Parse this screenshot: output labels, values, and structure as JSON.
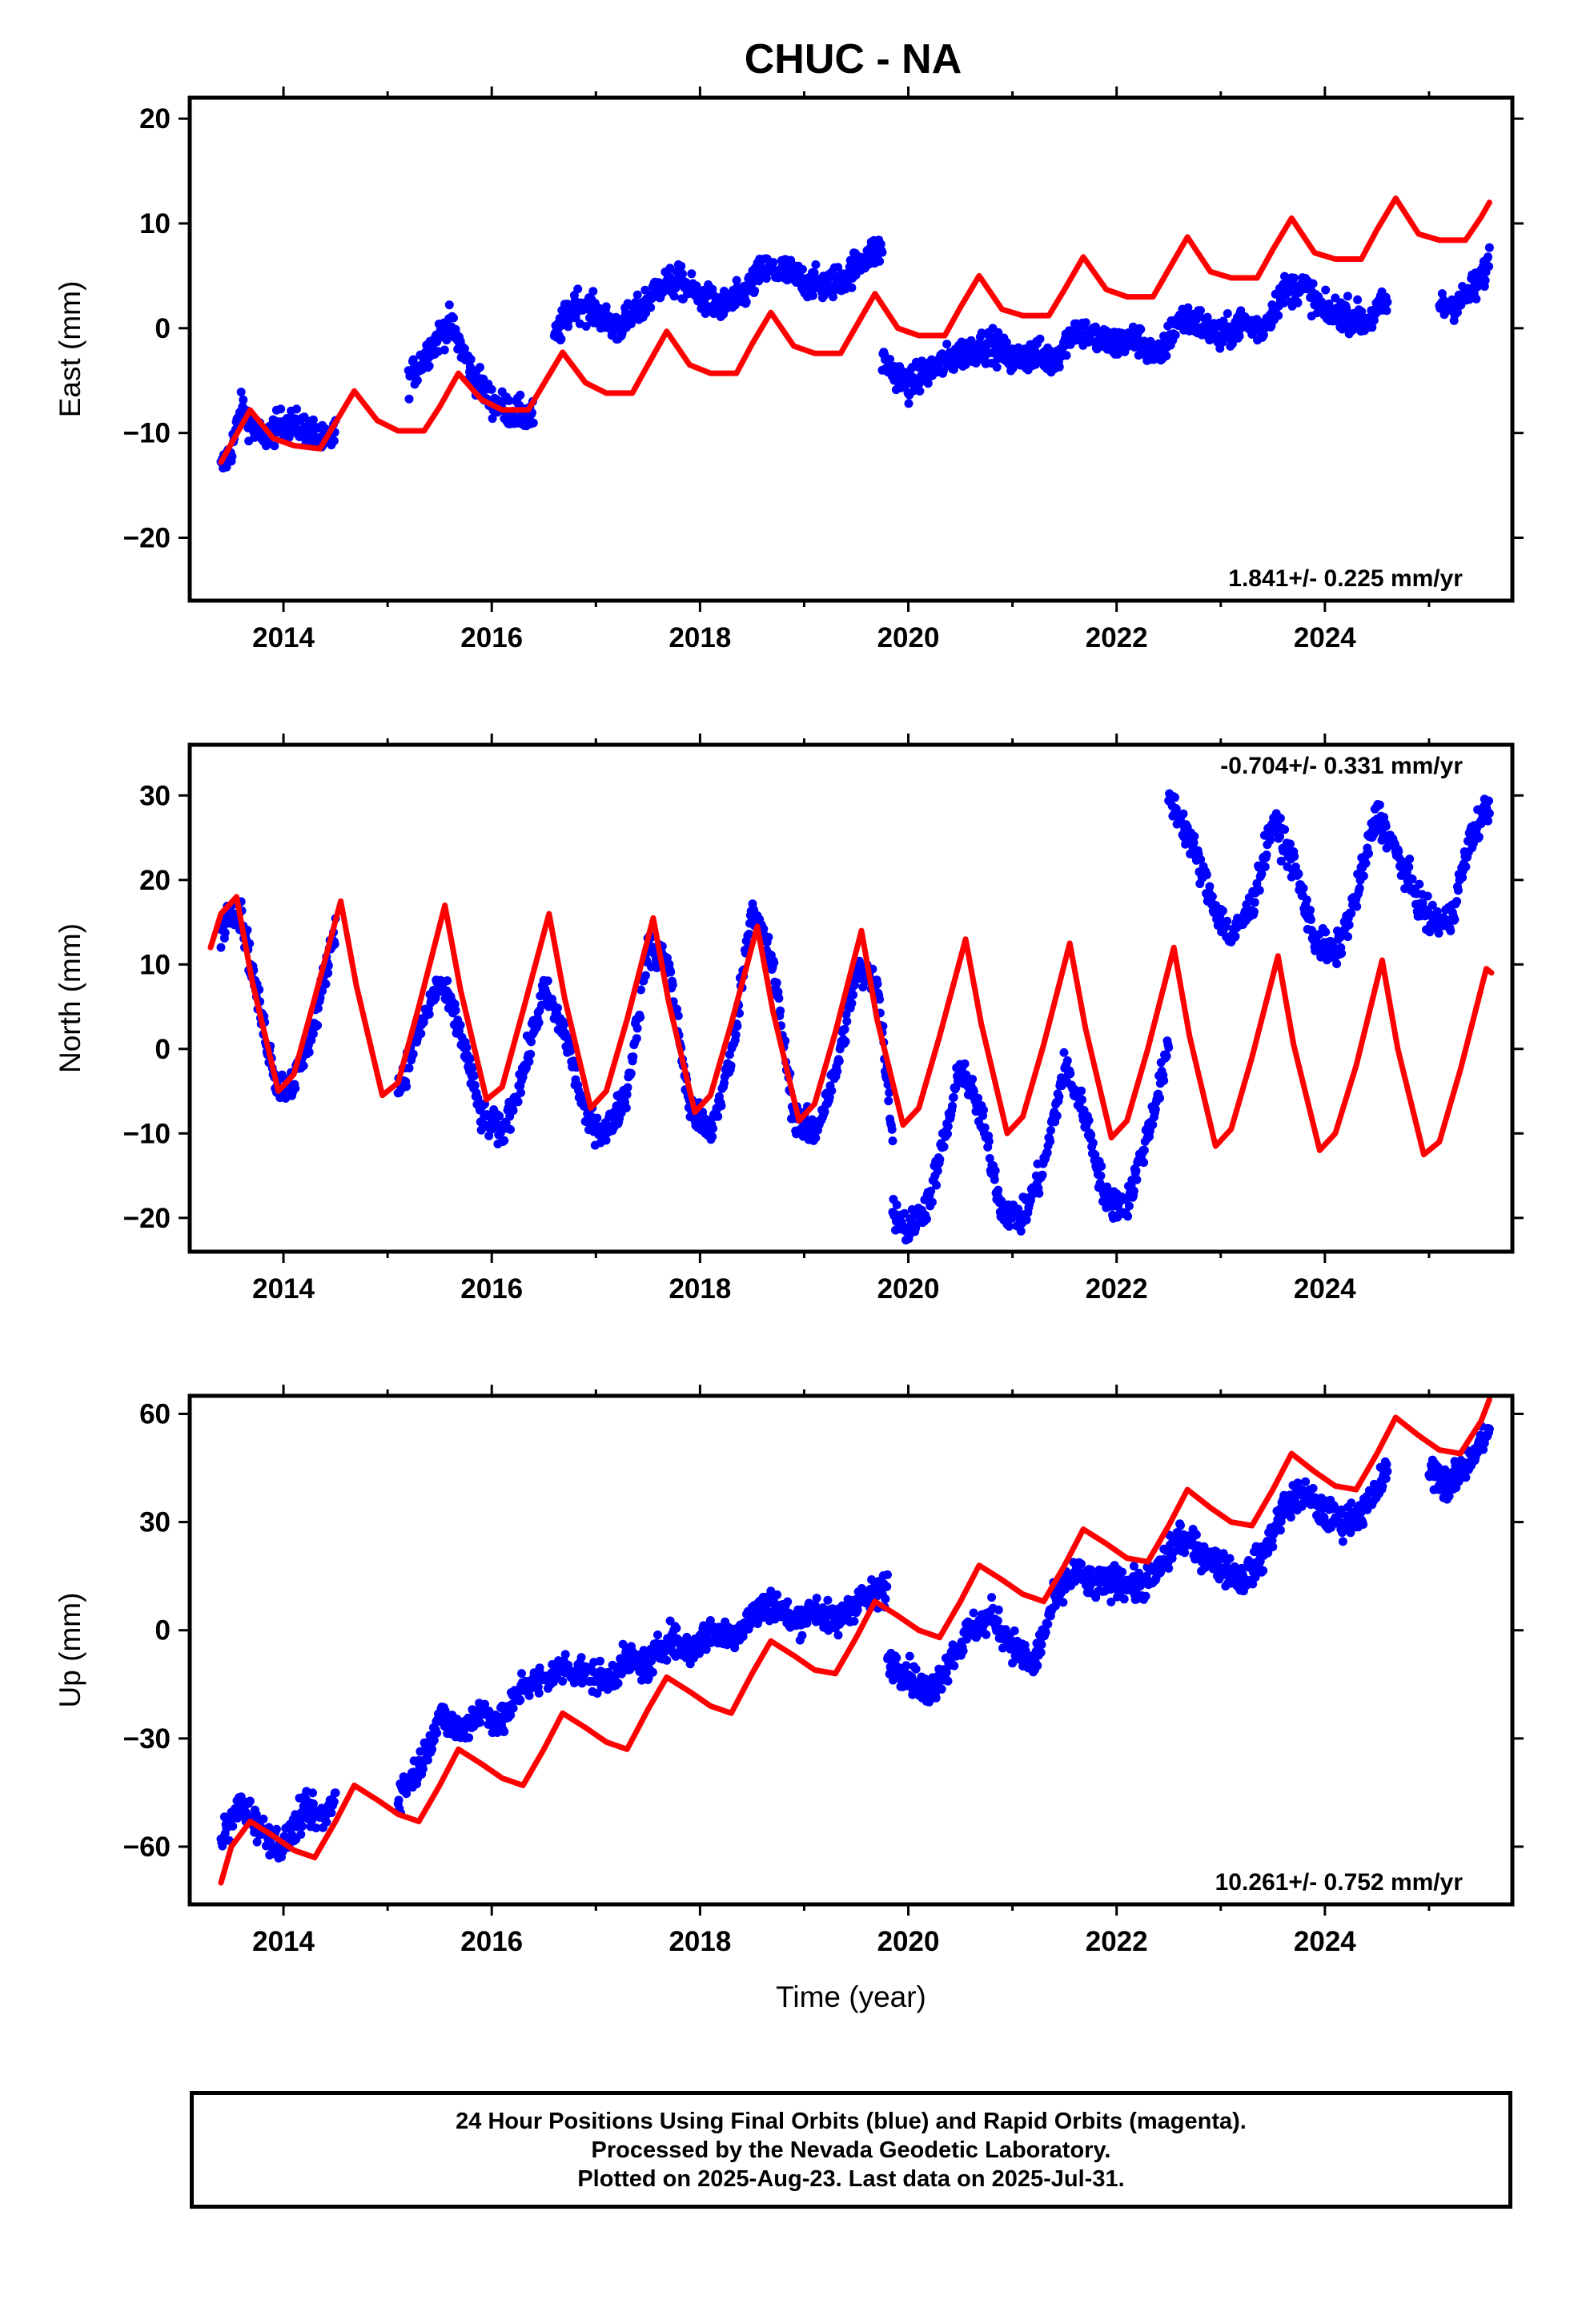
{
  "title": "CHUC - NA",
  "colors": {
    "final_orbits": "#0000ff",
    "model": "#ff0000",
    "frame": "#000000"
  },
  "chart_data": [
    {
      "type": "scatter",
      "ylabel": "East (mm)",
      "xlabel": "",
      "xlim": [
        2013.1,
        2025.8
      ],
      "ylim": [
        -26,
        22
      ],
      "yticks": [
        20,
        10,
        0,
        -10,
        -20
      ],
      "xticks": [
        2014,
        2016,
        2018,
        2020,
        2022,
        2024
      ],
      "rate_text": "1.841+/- 0.225 mm/yr",
      "rate_position": "bottom-right",
      "series": [
        {
          "role": "observations",
          "segments": [
            {
              "x": [
                2013.4,
                2013.5,
                2013.6,
                2013.7,
                2013.8,
                2014.0,
                2014.2,
                2014.4,
                2014.5
              ],
              "y": [
                -13.5,
                -11.5,
                -7.5,
                -9.5,
                -10.5,
                -9.0,
                -9.5,
                -11.0,
                -10.0
              ]
            },
            {
              "x": [
                2015.2,
                2015.4,
                2015.6,
                2015.8,
                2016.0,
                2016.2,
                2016.4
              ],
              "y": [
                -5.0,
                -2.0,
                0.5,
                -4.0,
                -7.0,
                -8.0,
                -8.5
              ]
            },
            {
              "x": [
                2016.6,
                2016.8,
                2017.0,
                2017.2,
                2017.4,
                2017.6,
                2017.8,
                2018.0,
                2018.2,
                2018.4,
                2018.6,
                2018.8,
                2019.0,
                2019.2,
                2019.4,
                2019.6,
                2019.75
              ],
              "y": [
                -1.0,
                2.5,
                1.5,
                0.0,
                1.5,
                4.0,
                4.5,
                3.0,
                2.0,
                3.0,
                5.5,
                5.5,
                4.5,
                4.0,
                5.0,
                7.0,
                7.5
              ]
            },
            {
              "x": [
                2019.75,
                2020.0,
                2020.2,
                2020.4,
                2020.6,
                2020.8,
                2021.0,
                2021.2,
                2021.4,
                2021.6,
                2021.8,
                2022.0,
                2022.2,
                2022.4,
                2022.6,
                2022.8,
                2023.0,
                2023.2,
                2023.4,
                2023.6,
                2023.8,
                2024.0,
                2024.2,
                2024.4,
                2024.6
              ],
              "y": [
                -3.0,
                -5.5,
                -4.0,
                -3.0,
                -2.0,
                -1.5,
                -3.0,
                -2.5,
                -3.0,
                0.0,
                -1.0,
                -1.5,
                -1.0,
                -3.0,
                1.0,
                0.5,
                -1.0,
                0.5,
                0.0,
                3.5,
                4.0,
                1.5,
                1.5,
                0.5,
                2.5
              ]
            },
            {
              "x": [
                2025.1,
                2025.3,
                2025.5,
                2025.58
              ],
              "y": [
                2.0,
                2.5,
                4.5,
                6.5
              ]
            }
          ]
        },
        {
          "role": "model",
          "x": [
            2013.4,
            2013.5,
            2013.68,
            2013.9,
            2014.1,
            2014.35,
            2014.5,
            2014.68,
            2014.9,
            2015.1,
            2015.35,
            2015.5,
            2015.68,
            2015.9,
            2016.1,
            2016.35,
            2016.5,
            2016.68,
            2016.9,
            2017.1,
            2017.35,
            2017.5,
            2017.68,
            2017.9,
            2018.1,
            2018.35,
            2018.5,
            2018.68,
            2018.9,
            2019.1,
            2019.35,
            2019.5,
            2019.68,
            2019.9,
            2020.1,
            2020.35,
            2020.5,
            2020.68,
            2020.9,
            2021.1,
            2021.35,
            2021.5,
            2021.68,
            2021.9,
            2022.1,
            2022.35,
            2022.5,
            2022.68,
            2022.9,
            2023.1,
            2023.35,
            2023.5,
            2023.68,
            2023.9,
            2024.1,
            2024.35,
            2024.5,
            2024.68,
            2024.9,
            2025.1,
            2025.35,
            2025.5,
            2025.58
          ],
          "y": [
            -12.8,
            -11.0,
            -7.8,
            -10.5,
            -11.2,
            -11.5,
            -9.0,
            -6.0,
            -8.8,
            -9.8,
            -9.8,
            -7.5,
            -4.3,
            -6.8,
            -7.8,
            -7.8,
            -5.3,
            -2.3,
            -5.2,
            -6.2,
            -6.2,
            -3.5,
            -0.3,
            -3.5,
            -4.3,
            -4.3,
            -1.5,
            1.5,
            -1.7,
            -2.4,
            -2.4,
            0.2,
            3.3,
            0.0,
            -0.7,
            -0.7,
            2.0,
            5.0,
            1.8,
            1.2,
            1.2,
            3.7,
            6.8,
            3.7,
            3.0,
            3.0,
            5.6,
            8.7,
            5.4,
            4.8,
            4.8,
            7.5,
            10.5,
            7.2,
            6.6,
            6.6,
            9.4,
            12.4,
            9.0,
            8.4,
            8.4,
            10.6,
            12.0
          ]
        }
      ]
    },
    {
      "type": "scatter",
      "ylabel": "North (mm)",
      "xlabel": "",
      "xlim": [
        2013.1,
        2025.8
      ],
      "ylim": [
        -24,
        36
      ],
      "yticks": [
        30,
        20,
        10,
        0,
        -10,
        -20
      ],
      "xticks": [
        2014,
        2016,
        2018,
        2020,
        2022,
        2024
      ],
      "rate_text": "-0.704+/- 0.331 mm/yr",
      "rate_position": "top-right",
      "series": [
        {
          "role": "observations",
          "segments": [
            {
              "x": [
                2013.4,
                2013.5,
                2013.6,
                2013.8,
                2013.95,
                2014.1,
                2014.3,
                2014.5
              ],
              "y": [
                14.0,
                17.0,
                15.5,
                3.0,
                -4.5,
                -4.0,
                3.0,
                15.0
              ]
            },
            {
              "x": [
                2015.1,
                2015.3,
                2015.5,
                2015.7,
                2015.9,
                2016.1,
                2016.3,
                2016.5,
                2016.7,
                2016.9,
                2017.1,
                2017.3,
                2017.5,
                2017.7,
                2017.9,
                2018.1,
                2018.3,
                2018.5,
                2018.7,
                2018.9,
                2019.1,
                2019.3,
                2019.5,
                2019.7,
                2019.85
              ],
              "y": [
                -5.0,
                2.0,
                8.0,
                2.0,
                -8.0,
                -10.0,
                -3.0,
                7.0,
                2.0,
                -8.0,
                -10.0,
                -5.0,
                12.0,
                10.0,
                -7.0,
                -10.0,
                -1.0,
                17.0,
                10.0,
                -8.0,
                -10.0,
                -3.0,
                9.0,
                8.0,
                -10.0
              ]
            },
            {
              "x": [
                2019.85,
                2020.0,
                2020.2,
                2020.4,
                2020.5,
                2020.7,
                2020.9,
                2021.1,
                2021.3,
                2021.5,
                2021.7,
                2021.9,
                2022.1,
                2022.3,
                2022.5
              ],
              "y": [
                -19.0,
                -21.5,
                -18.0,
                -8.0,
                -2.0,
                -8.0,
                -19.0,
                -20.0,
                -14.0,
                -2.0,
                -8.0,
                -18.0,
                -18.5,
                -10.0,
                0.0
              ]
            },
            {
              "x": [
                2022.5,
                2022.7,
                2022.9,
                2023.1,
                2023.3,
                2023.5,
                2023.7,
                2023.9,
                2024.1,
                2024.3,
                2024.5,
                2025.0,
                2025.2,
                2025.4,
                2025.58
              ],
              "y": [
                30.0,
                25.0,
                18.0,
                13.0,
                17.0,
                27.0,
                22.0,
                13.0,
                11.0,
                18.0,
                28.0,
                15.0,
                15.0,
                25.0,
                29.0
              ]
            }
          ]
        },
        {
          "role": "model",
          "x": [
            2013.3,
            2013.4,
            2013.55,
            2013.7,
            2013.95,
            2014.1,
            2014.3,
            2014.55,
            2014.7,
            2014.95,
            2015.1,
            2015.3,
            2015.55,
            2015.7,
            2015.95,
            2016.1,
            2016.3,
            2016.55,
            2016.7,
            2016.95,
            2017.1,
            2017.3,
            2017.55,
            2017.7,
            2017.95,
            2018.1,
            2018.3,
            2018.55,
            2018.7,
            2018.95,
            2019.1,
            2019.3,
            2019.55,
            2019.7,
            2019.95,
            2020.1,
            2020.3,
            2020.55,
            2020.7,
            2020.95,
            2021.1,
            2021.3,
            2021.55,
            2021.7,
            2021.95,
            2022.1,
            2022.3,
            2022.55,
            2022.7,
            2022.95,
            2023.1,
            2023.3,
            2023.55,
            2023.7,
            2023.95,
            2024.1,
            2024.3,
            2024.55,
            2024.7,
            2024.95,
            2025.1,
            2025.3,
            2025.55,
            2025.6
          ],
          "y": [
            12.0,
            16.0,
            18.0,
            8.0,
            -5.0,
            -3.0,
            6.0,
            17.5,
            7.5,
            -5.5,
            -4.0,
            5.0,
            17.0,
            7.0,
            -6.0,
            -4.5,
            4.5,
            16.0,
            6.0,
            -7.0,
            -5.0,
            3.5,
            15.5,
            5.5,
            -7.5,
            -5.5,
            3.0,
            14.5,
            4.5,
            -8.5,
            -6.5,
            2.0,
            14.0,
            3.5,
            -9.0,
            -7.0,
            1.5,
            13.0,
            3.0,
            -10.0,
            -8.0,
            0.5,
            12.5,
            2.5,
            -10.5,
            -8.5,
            0.0,
            12.0,
            1.5,
            -11.5,
            -9.5,
            -1.0,
            11.0,
            0.5,
            -12.0,
            -10.0,
            -2.0,
            10.5,
            0.0,
            -12.5,
            -11.0,
            -2.5,
            9.5,
            9.0
          ]
        }
      ]
    },
    {
      "type": "scatter",
      "ylabel": "Up (mm)",
      "xlabel": "Time (year)",
      "xlim": [
        2013.1,
        2025.8
      ],
      "ylim": [
        -76,
        65
      ],
      "yticks": [
        60,
        30,
        0,
        -30,
        -60
      ],
      "xticks": [
        2014,
        2016,
        2018,
        2020,
        2022,
        2024
      ],
      "rate_text": "10.261+/- 0.752 mm/yr",
      "rate_position": "bottom-right",
      "series": [
        {
          "role": "observations",
          "segments": [
            {
              "x": [
                2013.4,
                2013.6,
                2013.8,
                2014.0,
                2014.2,
                2014.4,
                2014.5
              ],
              "y": [
                -58.0,
                -48.0,
                -56.0,
                -60.0,
                -50.0,
                -52.0,
                -45.0
              ]
            },
            {
              "x": [
                2015.1,
                2015.3,
                2015.5,
                2015.7,
                2015.9,
                2016.1,
                2016.3,
                2016.5,
                2016.7,
                2016.9,
                2017.1,
                2017.3,
                2017.5,
                2017.7,
                2017.9,
                2018.1,
                2018.3,
                2018.5,
                2018.7,
                2018.9,
                2019.1,
                2019.3,
                2019.5,
                2019.7,
                2019.8
              ],
              "y": [
                -46.0,
                -38.0,
                -24.0,
                -28.0,
                -22.0,
                -26.0,
                -15.0,
                -14.0,
                -10.0,
                -12.0,
                -14.0,
                -8.0,
                -10.0,
                -2.0,
                -6.0,
                0.0,
                -2.0,
                4.0,
                8.0,
                2.0,
                6.0,
                2.0,
                8.0,
                10.0,
                12.0
              ]
            },
            {
              "x": [
                2019.8,
                2020.0,
                2020.2,
                2020.4,
                2020.6,
                2020.8,
                2021.0,
                2021.2,
                2021.4,
                2021.6,
                2021.8,
                2022.0,
                2022.2,
                2022.4,
                2022.6,
                2022.8,
                2023.0,
                2023.2,
                2023.4,
                2023.6,
                2023.8,
                2024.0,
                2024.2,
                2024.4,
                2024.6
              ],
              "y": [
                -8.0,
                -12.0,
                -18.0,
                -8.0,
                0.0,
                4.0,
                -4.0,
                -10.0,
                8.0,
                16.0,
                12.0,
                14.0,
                12.0,
                16.0,
                26.0,
                22.0,
                18.0,
                14.0,
                20.0,
                34.0,
                38.0,
                32.0,
                30.0,
                34.0,
                44.0
              ]
            },
            {
              "x": [
                2025.0,
                2025.2,
                2025.4,
                2025.58
              ],
              "y": [
                45.0,
                40.0,
                48.0,
                55.0
              ]
            }
          ]
        },
        {
          "role": "model",
          "x": [
            2013.4,
            2013.5,
            2013.68,
            2013.9,
            2014.1,
            2014.3,
            2014.5,
            2014.68,
            2014.9,
            2015.1,
            2015.3,
            2015.5,
            2015.68,
            2015.9,
            2016.1,
            2016.3,
            2016.5,
            2016.68,
            2016.9,
            2017.1,
            2017.3,
            2017.5,
            2017.68,
            2017.9,
            2018.1,
            2018.3,
            2018.5,
            2018.68,
            2018.9,
            2019.1,
            2019.3,
            2019.5,
            2019.68,
            2019.9,
            2020.1,
            2020.3,
            2020.5,
            2020.68,
            2020.9,
            2021.1,
            2021.3,
            2021.5,
            2021.68,
            2021.9,
            2022.1,
            2022.3,
            2022.5,
            2022.68,
            2022.9,
            2023.1,
            2023.3,
            2023.5,
            2023.68,
            2023.9,
            2024.1,
            2024.3,
            2024.5,
            2024.68,
            2024.9,
            2025.1,
            2025.3,
            2025.5,
            2025.58
          ],
          "y": [
            -70.0,
            -60.0,
            -53.0,
            -57.0,
            -61.0,
            -63.0,
            -53.0,
            -43.0,
            -47.0,
            -51.0,
            -53.0,
            -43.0,
            -33.0,
            -37.0,
            -41.0,
            -43.0,
            -33.0,
            -23.0,
            -27.0,
            -31.0,
            -33.0,
            -22.0,
            -13.0,
            -17.0,
            -21.0,
            -23.0,
            -12.0,
            -3.0,
            -7.0,
            -11.0,
            -12.0,
            -2.0,
            8.0,
            4.0,
            0.0,
            -2.0,
            8.0,
            18.0,
            14.0,
            10.0,
            8.0,
            18.0,
            28.0,
            24.0,
            20.0,
            19.0,
            29.0,
            39.0,
            34.0,
            30.0,
            29.0,
            39.0,
            49.0,
            44.0,
            40.0,
            39.0,
            49.0,
            59.0,
            54.0,
            50.0,
            49.0,
            58.0,
            64.0
          ]
        }
      ]
    }
  ],
  "caption": {
    "line1": "24 Hour Positions Using Final Orbits (blue) and Rapid Orbits (magenta).",
    "line2": "Processed by the Nevada Geodetic Laboratory.",
    "line3": "Plotted on 2025-Aug-23. Last data on 2025-Jul-31."
  }
}
